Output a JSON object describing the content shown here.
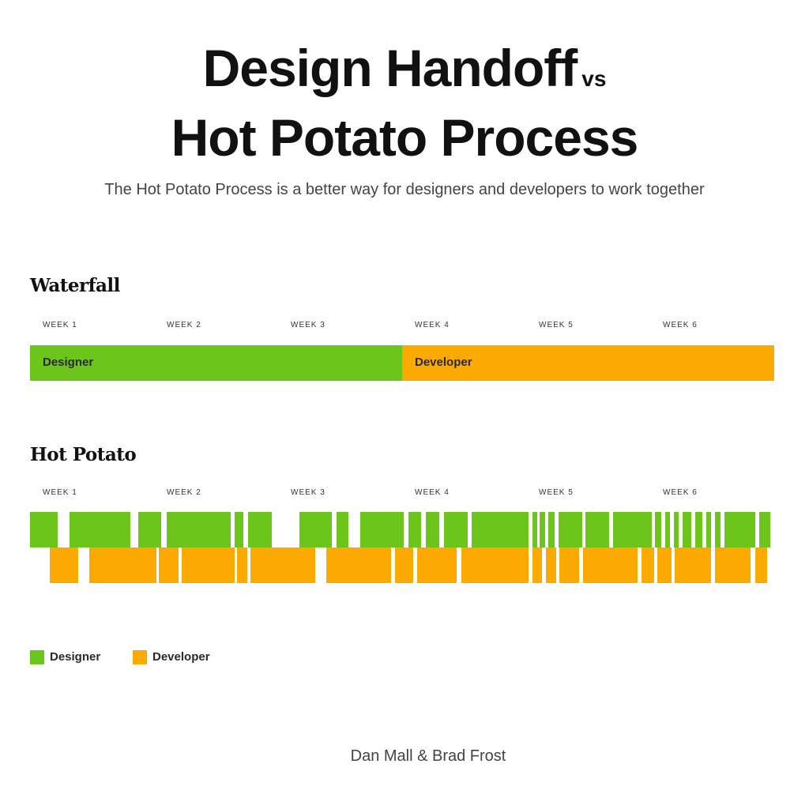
{
  "header": {
    "title_line1": "Design Handoff",
    "title_vs": "vs",
    "title_line2": "Hot Potato Process",
    "subtitle": "The Hot Potato Process is a better way for designers and developers to work together"
  },
  "colors": {
    "designer": "#6cc51a",
    "developer": "#fcaa02"
  },
  "weeks": [
    "WEEK 1",
    "WEEK 2",
    "WEEK 3",
    "WEEK 4",
    "WEEK 5",
    "WEEK 6"
  ],
  "waterfall": {
    "title": "Waterfall",
    "designer_label": "Designer",
    "developer_label": "Developer",
    "designer_weeks": 3,
    "developer_weeks": 3
  },
  "hot_potato": {
    "title": "Hot Potato",
    "designer_blocks_weeks": [
      [
        0.0,
        0.22
      ],
      [
        0.32,
        0.81
      ],
      [
        0.87,
        1.06
      ],
      [
        1.1,
        1.62
      ],
      [
        1.65,
        1.72
      ],
      [
        1.76,
        1.95
      ],
      [
        2.17,
        2.43
      ],
      [
        2.47,
        2.57
      ],
      [
        2.66,
        3.01
      ],
      [
        3.05,
        3.15
      ],
      [
        3.19,
        3.3
      ],
      [
        3.34,
        3.53
      ],
      [
        3.56,
        4.02
      ],
      [
        4.05,
        4.09
      ],
      [
        4.11,
        4.15
      ],
      [
        4.18,
        4.23
      ],
      [
        4.26,
        4.45
      ],
      [
        4.48,
        4.67
      ],
      [
        4.7,
        5.01
      ],
      [
        5.04,
        5.09
      ],
      [
        5.12,
        5.16
      ],
      [
        5.19,
        5.23
      ],
      [
        5.26,
        5.33
      ],
      [
        5.36,
        5.42
      ],
      [
        5.45,
        5.49
      ],
      [
        5.52,
        5.57
      ],
      [
        5.6,
        5.85
      ],
      [
        5.88,
        5.97
      ]
    ],
    "developer_blocks_weeks": [
      [
        0.16,
        0.39
      ],
      [
        0.48,
        1.02
      ],
      [
        1.04,
        1.2
      ],
      [
        1.22,
        1.65
      ],
      [
        1.67,
        1.75
      ],
      [
        1.78,
        2.3
      ],
      [
        2.39,
        2.91
      ],
      [
        2.94,
        3.09
      ],
      [
        3.12,
        3.44
      ],
      [
        3.48,
        4.02
      ],
      [
        4.05,
        4.13
      ],
      [
        4.16,
        4.24
      ],
      [
        4.27,
        4.43
      ],
      [
        4.46,
        4.9
      ],
      [
        4.93,
        5.03
      ],
      [
        5.06,
        5.17
      ],
      [
        5.2,
        5.49
      ],
      [
        5.52,
        5.81
      ],
      [
        5.85,
        5.94
      ]
    ]
  },
  "legend": {
    "designer": "Designer",
    "developer": "Developer"
  },
  "credit": "Dan Mall & Brad Frost"
}
